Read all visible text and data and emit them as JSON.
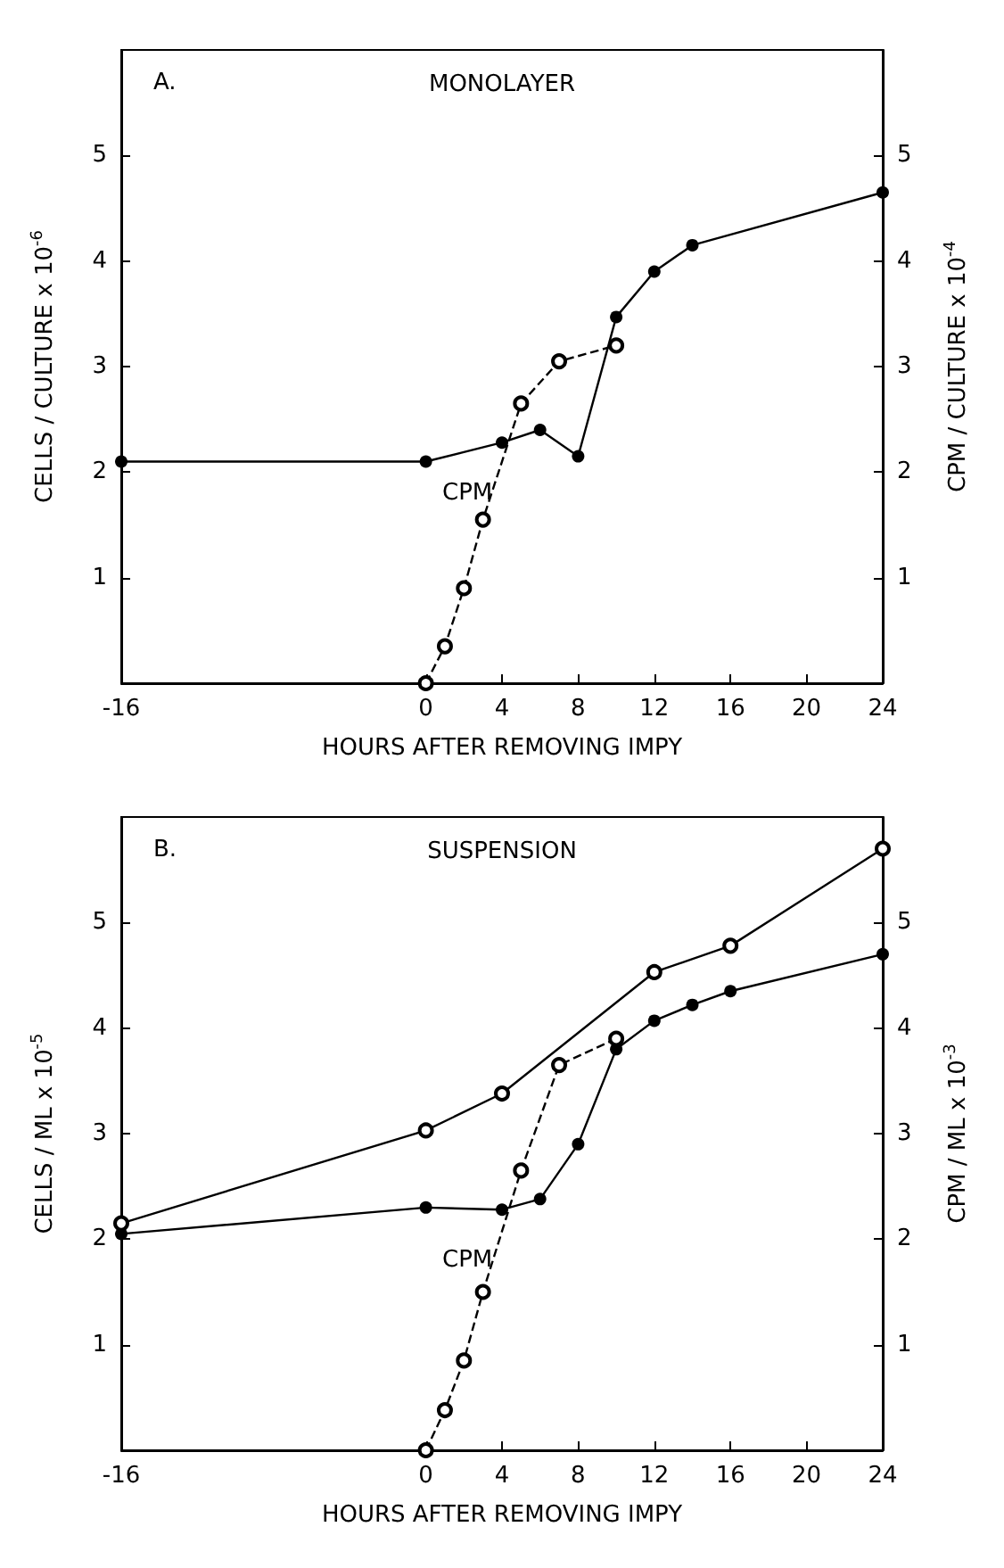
{
  "chart_data": [
    {
      "type": "line",
      "title": "MONOLAYER",
      "xlabel": "HOURS AFTER REMOVING IMPY",
      "ylabel": "CELLS / CULTURE x 10$^{-6}$",
      "y2label": "CPM / CULTURE x 10$^{-4}$",
      "xlim": [
        -16,
        24
      ],
      "xticks": [
        -16,
        0,
        4,
        8,
        12,
        16,
        20,
        24
      ],
      "ylim": [
        0,
        6
      ],
      "yticks": [
        1,
        2,
        3,
        4,
        5
      ],
      "y2lim": [
        0,
        6
      ],
      "y2ticks": [
        1,
        2,
        3,
        4,
        5
      ],
      "grid": false,
      "marker": "circle",
      "annotations": [
        "A.",
        "CPM"
      ],
      "series": [
        {
          "color": "#000000",
          "line_style": "solid",
          "x": [
            -16,
            0,
            4,
            6,
            8,
            10,
            12,
            14,
            24
          ],
          "values": [
            2.1,
            2.1,
            2.28,
            2.4,
            2.15,
            3.47,
            3.9,
            4.15,
            4.65
          ]
        },
        {
          "color": "#000000",
          "line_style": "dashed",
          "axis": "y2",
          "x": [
            0,
            1,
            2,
            3,
            5,
            7,
            10
          ],
          "values": [
            0,
            0.35,
            0.9,
            1.55,
            2.65,
            3.05,
            3.2
          ]
        }
      ]
    },
    {
      "type": "line",
      "title": "SUSPENSION",
      "xlabel": "HOURS AFTER REMOVING IMPY",
      "ylabel": "CELLS / ML x 10$^{-5}$",
      "y2label": "CPM / ML x 10$^{-3}$",
      "xlim": [
        -16,
        24
      ],
      "xticks": [
        -16,
        0,
        4,
        8,
        12,
        16,
        20,
        24
      ],
      "ylim": [
        0,
        6
      ],
      "yticks": [
        1,
        2,
        3,
        4,
        5
      ],
      "y2lim": [
        0,
        6
      ],
      "y2ticks": [
        1,
        2,
        3,
        4,
        5
      ],
      "grid": false,
      "marker": "circle",
      "annotations": [
        "B.",
        "CPM"
      ],
      "series": [
        {
          "color": "#000000",
          "line_style": "solid",
          "x": [
            -16,
            0,
            4,
            6,
            8,
            10,
            12,
            14,
            16,
            24
          ],
          "values": [
            2.05,
            2.3,
            2.28,
            2.38,
            2.9,
            3.8,
            4.07,
            4.22,
            4.35,
            4.7
          ]
        },
        {
          "color": "#000000",
          "line_style": "solid",
          "axis": "y2",
          "x": [
            -16,
            0,
            4,
            12,
            16,
            24
          ],
          "values": [
            2.15,
            3.03,
            3.38,
            4.53,
            4.78,
            5.7
          ]
        },
        {
          "color": "#000000",
          "line_style": "dashed",
          "axis": "y2",
          "x": [
            0,
            1,
            2,
            3,
            5,
            7,
            10
          ],
          "values": [
            0,
            0.38,
            0.85,
            1.5,
            2.65,
            3.65,
            3.9
          ]
        }
      ]
    }
  ]
}
